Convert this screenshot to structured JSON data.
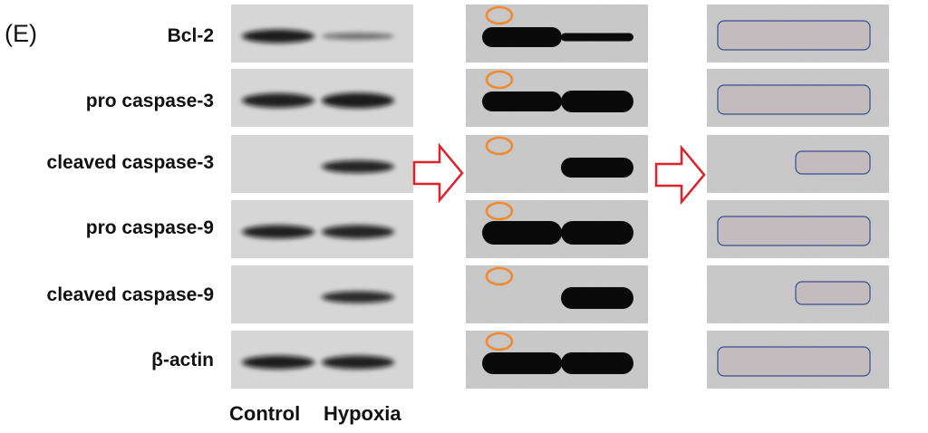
{
  "panel_label": "(E)",
  "rows": [
    {
      "label": "Bcl-2"
    },
    {
      "label": "pro caspase-3"
    },
    {
      "label": "cleaved caspase-3"
    },
    {
      "label": "pro caspase-9"
    },
    {
      "label": "cleaved caspase-9"
    },
    {
      "label": "β-actin"
    }
  ],
  "lanes": [
    "Control",
    "Hypoxia"
  ],
  "colors": {
    "arrow": "#e0202a",
    "highlight_circle": "#f08a30",
    "band_fill": "#c3bcbf",
    "band_stroke": "#3b4e8f"
  }
}
